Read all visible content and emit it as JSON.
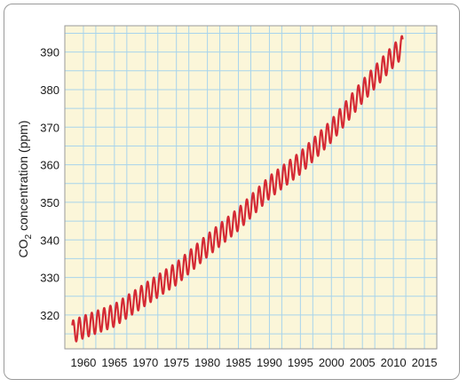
{
  "chart_data": {
    "type": "line",
    "title": "",
    "xlabel": "",
    "ylabel": {
      "prefix": "CO",
      "subscript": "2",
      "suffix": " concentration (ppm)"
    },
    "xlim": [
      1957,
      2017
    ],
    "ylim": [
      311,
      397
    ],
    "x_ticks": [
      1960,
      1965,
      1970,
      1975,
      1980,
      1985,
      1990,
      1995,
      2000,
      2005,
      2010,
      2015
    ],
    "y_ticks": [
      320,
      330,
      340,
      350,
      360,
      370,
      380,
      390
    ],
    "grid": true,
    "legend": "none",
    "colors": {
      "plot_bg": "#fbf6d9",
      "grid": "#a8d4ec",
      "line": "#d42a34",
      "frame": "#9a9a9a"
    },
    "series": [
      {
        "name": "",
        "seasonal_amplitude_ppm": 3,
        "x": [
          1958.2,
          1960,
          1965,
          1970,
          1975,
          1980,
          1985,
          1990,
          1995,
          2000,
          2005,
          2010,
          2011.5
        ],
        "values": [
          315.5,
          316.8,
          319.9,
          325.5,
          331.0,
          338.5,
          345.5,
          354.0,
          360.5,
          369.0,
          379.5,
          389.0,
          391.5
        ]
      }
    ]
  }
}
